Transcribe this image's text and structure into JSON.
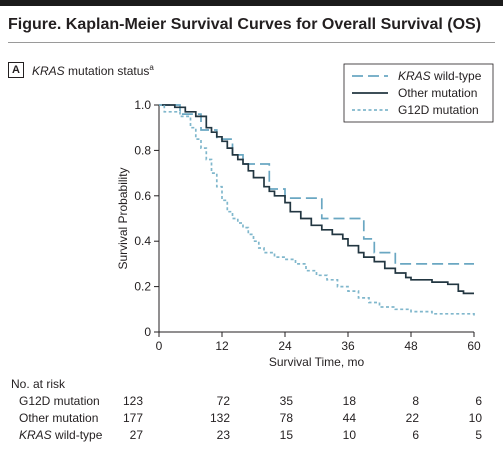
{
  "figure": {
    "title": "Figure. Kaplan-Meier Survival Curves for Overall Survival (OS)",
    "panel_letter": "A",
    "panel_title_italic": "KRAS",
    "panel_title_rest": " mutation status",
    "panel_title_sup": "a"
  },
  "chart_data": {
    "type": "line",
    "title": "KRAS mutation status",
    "xlabel": "Survival Time, mo",
    "ylabel": "Survival Probability",
    "xlim": [
      0,
      60
    ],
    "ylim": [
      0,
      1.0
    ],
    "x_ticks": [
      0,
      12,
      24,
      36,
      48,
      60
    ],
    "y_ticks": [
      0,
      0.2,
      0.4,
      0.6,
      0.8,
      1.0
    ],
    "y_tick_labels": [
      "0",
      "0.2",
      "0.4",
      "0.6",
      "0.8",
      "1.0"
    ],
    "grid": false,
    "legend_position": "top-right",
    "series": [
      {
        "name": "KRAS wild-type",
        "name_italic": "KRAS",
        "name_rest": " wild-type",
        "style": "long-dash",
        "color": "#6aa7c2",
        "points": [
          [
            0,
            1.0
          ],
          [
            4,
            1.0
          ],
          [
            4,
            0.96
          ],
          [
            8,
            0.96
          ],
          [
            8,
            0.89
          ],
          [
            11,
            0.89
          ],
          [
            11,
            0.85
          ],
          [
            14,
            0.85
          ],
          [
            14,
            0.78
          ],
          [
            16,
            0.78
          ],
          [
            16,
            0.74
          ],
          [
            21,
            0.74
          ],
          [
            21,
            0.63
          ],
          [
            24,
            0.63
          ],
          [
            24,
            0.59
          ],
          [
            31,
            0.59
          ],
          [
            31,
            0.5
          ],
          [
            39,
            0.5
          ],
          [
            39,
            0.41
          ],
          [
            41,
            0.41
          ],
          [
            41,
            0.35
          ],
          [
            45,
            0.35
          ],
          [
            45,
            0.3
          ],
          [
            60,
            0.3
          ]
        ]
      },
      {
        "name": "Other mutation",
        "style": "solid",
        "color": "#223641",
        "points": [
          [
            0,
            1.0
          ],
          [
            3,
            0.99
          ],
          [
            5,
            0.97
          ],
          [
            7,
            0.95
          ],
          [
            9,
            0.9
          ],
          [
            10,
            0.88
          ],
          [
            11,
            0.86
          ],
          [
            12,
            0.84
          ],
          [
            13,
            0.81
          ],
          [
            14,
            0.78
          ],
          [
            15,
            0.76
          ],
          [
            16,
            0.74
          ],
          [
            17,
            0.71
          ],
          [
            18,
            0.68
          ],
          [
            20,
            0.64
          ],
          [
            21,
            0.62
          ],
          [
            22,
            0.6
          ],
          [
            24,
            0.57
          ],
          [
            25,
            0.53
          ],
          [
            27,
            0.5
          ],
          [
            29,
            0.47
          ],
          [
            31,
            0.45
          ],
          [
            33,
            0.43
          ],
          [
            35,
            0.41
          ],
          [
            36,
            0.38
          ],
          [
            38,
            0.35
          ],
          [
            39,
            0.33
          ],
          [
            41,
            0.31
          ],
          [
            43,
            0.28
          ],
          [
            45,
            0.26
          ],
          [
            47,
            0.24
          ],
          [
            48,
            0.23
          ],
          [
            52,
            0.22
          ],
          [
            55,
            0.21
          ],
          [
            57,
            0.18
          ],
          [
            58,
            0.17
          ],
          [
            60,
            0.17
          ]
        ]
      },
      {
        "name": "G12D mutation",
        "style": "short-dash",
        "color": "#80b7cc",
        "points": [
          [
            0,
            1.0
          ],
          [
            1,
            0.97
          ],
          [
            4,
            0.95
          ],
          [
            6,
            0.9
          ],
          [
            7,
            0.85
          ],
          [
            8,
            0.81
          ],
          [
            9,
            0.76
          ],
          [
            10,
            0.7
          ],
          [
            11,
            0.64
          ],
          [
            12,
            0.58
          ],
          [
            13,
            0.53
          ],
          [
            14,
            0.5
          ],
          [
            15,
            0.48
          ],
          [
            16,
            0.46
          ],
          [
            17,
            0.43
          ],
          [
            18,
            0.4
          ],
          [
            19,
            0.37
          ],
          [
            20,
            0.35
          ],
          [
            22,
            0.33
          ],
          [
            24,
            0.32
          ],
          [
            26,
            0.3
          ],
          [
            28,
            0.27
          ],
          [
            30,
            0.25
          ],
          [
            32,
            0.23
          ],
          [
            34,
            0.2
          ],
          [
            36,
            0.18
          ],
          [
            38,
            0.15
          ],
          [
            40,
            0.13
          ],
          [
            42,
            0.11
          ],
          [
            45,
            0.1
          ],
          [
            48,
            0.09
          ],
          [
            52,
            0.08
          ],
          [
            56,
            0.08
          ],
          [
            58,
            0.08
          ],
          [
            60,
            0.07
          ]
        ]
      }
    ],
    "at_risk": {
      "header": "No. at risk",
      "times": [
        0,
        12,
        24,
        36,
        48,
        60
      ],
      "rows": [
        {
          "label": "G12D mutation",
          "label_italic": "",
          "label_rest": "G12D mutation",
          "values": [
            "123",
            "72",
            "35",
            "18",
            "8",
            "6"
          ]
        },
        {
          "label": "Other mutation",
          "label_italic": "",
          "label_rest": "Other mutation",
          "values": [
            "177",
            "132",
            "78",
            "44",
            "22",
            "10"
          ]
        },
        {
          "label": "KRAS wild-type",
          "label_italic": "KRAS",
          "label_rest": " wild-type",
          "values": [
            "27",
            "23",
            "15",
            "10",
            "6",
            "5"
          ]
        }
      ]
    }
  }
}
